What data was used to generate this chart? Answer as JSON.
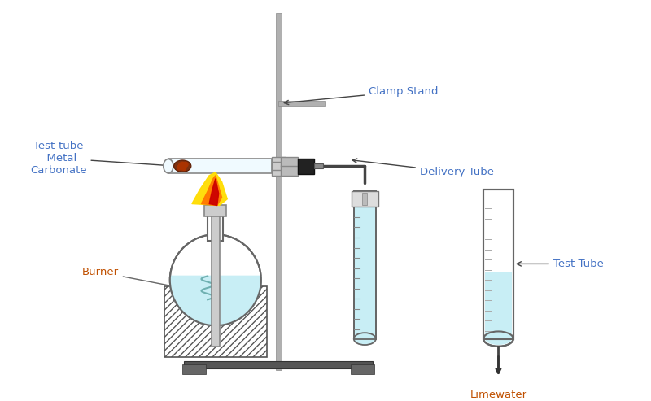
{
  "bg_color": "#ffffff",
  "label_color": "#4472c4",
  "burner_label_color": "#c05000",
  "limewater_label_color": "#c05000",
  "stand_color": "#b0b0b0",
  "flask_water_color": "#c8eef5",
  "test_tube_water_color": "#c8eef5",
  "labels": {
    "clamp_stand": "Clamp Stand",
    "delivery_tube": "Delivery Tube",
    "test_tube_metal": "Test-tube\n  Metal\nCarbonate",
    "burner": "Burner",
    "test_tube": "Test Tube",
    "limewater": "Limewater"
  },
  "figsize": [
    8.0,
    4.93
  ],
  "dpi": 100
}
